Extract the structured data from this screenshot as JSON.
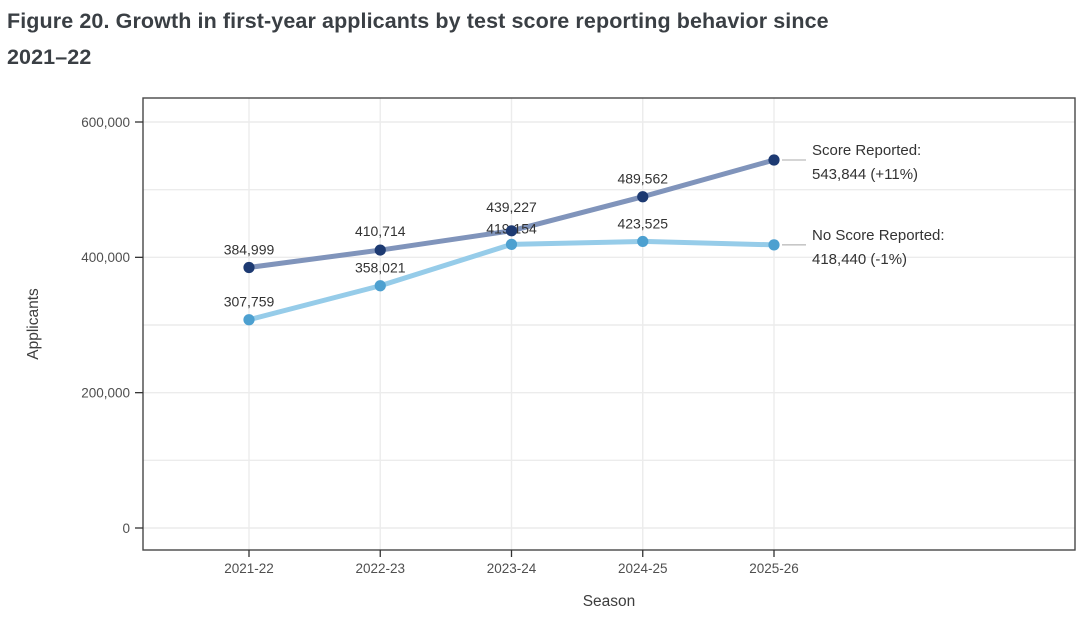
{
  "figure": {
    "title_line1": "Figure 20. Growth in first-year applicants by test score reporting behavior since",
    "title_line2": "2021–22"
  },
  "chart_data": {
    "type": "line",
    "title": "Figure 20. Growth in first-year applicants by test score reporting behavior since 2021–22",
    "xlabel": "Season",
    "ylabel": "Applicants",
    "ylim": [
      0,
      600000
    ],
    "grid": true,
    "grid_step": 100000,
    "legend_position": "right-annotations",
    "categories": [
      "2021-22",
      "2022-23",
      "2023-24",
      "2024-25",
      "2025-26"
    ],
    "y_ticks": [
      {
        "value": 0,
        "label": "0"
      },
      {
        "value": 200000,
        "label": "200,000"
      },
      {
        "value": 400000,
        "label": "400,000"
      },
      {
        "value": 600000,
        "label": "600,000"
      }
    ],
    "series": [
      {
        "name": "Score Reported",
        "values": [
          384999,
          410714,
          439227,
          489562,
          543844
        ],
        "point_labels": [
          "384,999",
          "410,714",
          "439,227",
          "489,562"
        ],
        "annotation_line1": "Score Reported:",
        "annotation_line2": "543,844 (+11%)",
        "line_color": "#8094bb",
        "point_color": "#1d3a72"
      },
      {
        "name": "No Score Reported",
        "values": [
          307759,
          358021,
          419154,
          423525,
          418440
        ],
        "point_labels": [
          "307,759",
          "358,021",
          "419,154",
          "423,525"
        ],
        "annotation_line1": "No Score Reported:",
        "annotation_line2": "418,440 (-1%)",
        "line_color": "#96cce9",
        "point_color": "#4da0d0"
      }
    ]
  },
  "colors": {
    "background": "#ffffff",
    "grid": "#ececec",
    "panel_border": "#474747",
    "tick": "#333333",
    "connector": "#c7c7c7"
  }
}
